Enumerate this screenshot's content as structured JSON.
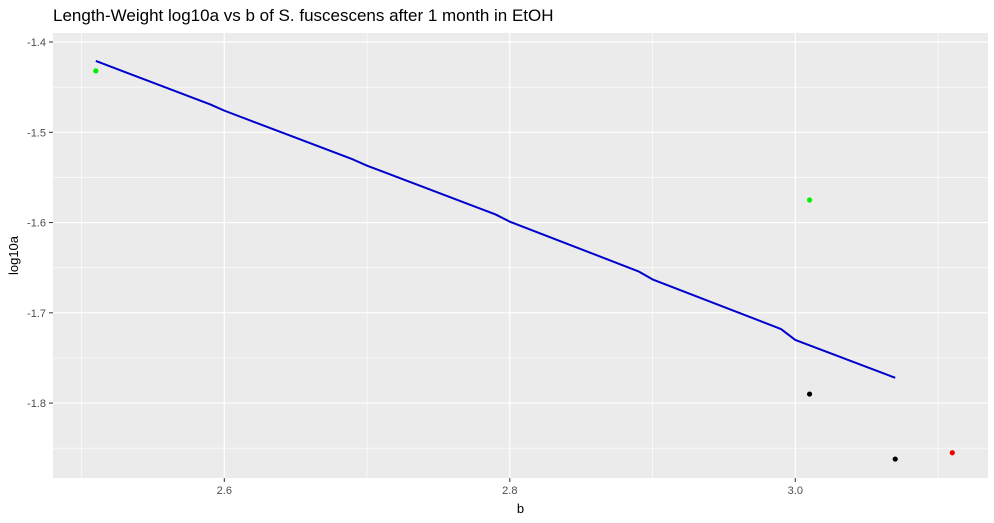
{
  "chart_data": {
    "type": "scatter",
    "title": "Length-Weight log10a vs b of S. fuscescens after 1 month in EtOH",
    "xlabel": "b",
    "ylabel": "log10a",
    "xlim": [
      2.48,
      3.135
    ],
    "ylim": [
      -1.883,
      -1.39
    ],
    "x_ticks": [
      2.6,
      2.8,
      3.0
    ],
    "x_tick_labels": [
      "2.6",
      "2.8",
      "3.0"
    ],
    "y_ticks": [
      -1.4,
      -1.5,
      -1.6,
      -1.7,
      -1.8
    ],
    "y_tick_labels": [
      "-1.4",
      "-1.5",
      "-1.6",
      "-1.7",
      "-1.8"
    ],
    "grid": true,
    "legend": "none",
    "panel_background": "#ebebeb",
    "grid_color": "#ffffff",
    "points": [
      {
        "x": 2.51,
        "y": -1.432,
        "color": "#00ee00"
      },
      {
        "x": 3.01,
        "y": -1.575,
        "color": "#00ee00"
      },
      {
        "x": 3.01,
        "y": -1.79,
        "color": "#000000"
      },
      {
        "x": 3.07,
        "y": -1.862,
        "color": "#000000"
      },
      {
        "x": 3.11,
        "y": -1.855,
        "color": "#ee0000"
      }
    ],
    "fit_line": {
      "color": "#0000cc",
      "x": [
        2.51,
        2.59,
        2.6,
        2.69,
        2.7,
        2.79,
        2.8,
        2.89,
        2.9,
        2.99,
        3.0,
        3.07
      ],
      "y": [
        -1.421,
        -1.469,
        -1.476,
        -1.53,
        -1.537,
        -1.591,
        -1.599,
        -1.654,
        -1.663,
        -1.718,
        -1.73,
        -1.772
      ]
    }
  }
}
